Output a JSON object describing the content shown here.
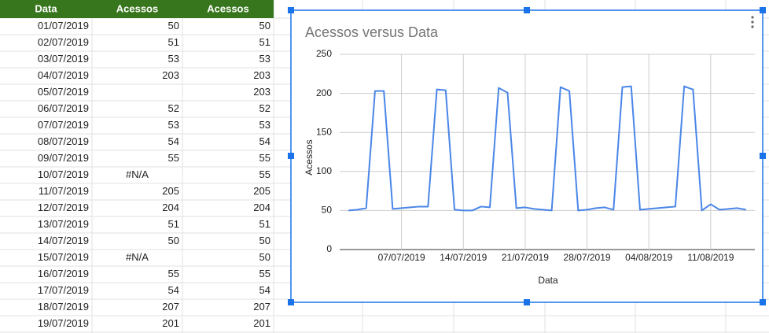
{
  "table": {
    "header": [
      "Data",
      "Acessos",
      "Acessos"
    ],
    "rows": [
      [
        "01/07/2019",
        50,
        50
      ],
      [
        "02/07/2019",
        51,
        51
      ],
      [
        "03/07/2019",
        53,
        53
      ],
      [
        "04/07/2019",
        203,
        203
      ],
      [
        "05/07/2019",
        null,
        203
      ],
      [
        "06/07/2019",
        52,
        52
      ],
      [
        "07/07/2019",
        53,
        53
      ],
      [
        "08/07/2019",
        54,
        54
      ],
      [
        "09/07/2019",
        55,
        55
      ],
      [
        "10/07/2019",
        "#N/A",
        55
      ],
      [
        "11/07/2019",
        205,
        205
      ],
      [
        "12/07/2019",
        204,
        204
      ],
      [
        "13/07/2019",
        51,
        51
      ],
      [
        "14/07/2019",
        50,
        50
      ],
      [
        "15/07/2019",
        "#N/A",
        50
      ],
      [
        "16/07/2019",
        55,
        55
      ],
      [
        "17/07/2019",
        54,
        54
      ],
      [
        "18/07/2019",
        207,
        207
      ],
      [
        "19/07/2019",
        201,
        201
      ]
    ]
  },
  "chart_data": {
    "type": "line",
    "title": "Acessos versus Data",
    "x_label": "Data",
    "y_label": "Acessos",
    "color": "#4a86e8",
    "grid": true,
    "x": [
      "2019-07-01",
      "2019-07-02",
      "2019-07-03",
      "2019-07-04",
      "2019-07-05",
      "2019-07-06",
      "2019-07-07",
      "2019-07-08",
      "2019-07-09",
      "2019-07-10",
      "2019-07-11",
      "2019-07-12",
      "2019-07-13",
      "2019-07-14",
      "2019-07-15",
      "2019-07-16",
      "2019-07-17",
      "2019-07-18",
      "2019-07-19",
      "2019-07-20",
      "2019-07-21",
      "2019-07-22",
      "2019-07-23",
      "2019-07-24",
      "2019-07-25",
      "2019-07-26",
      "2019-07-27",
      "2019-07-28",
      "2019-07-29",
      "2019-07-30",
      "2019-07-31",
      "2019-08-01",
      "2019-08-02",
      "2019-08-03",
      "2019-08-04",
      "2019-08-05",
      "2019-08-06",
      "2019-08-07",
      "2019-08-08",
      "2019-08-09",
      "2019-08-10",
      "2019-08-11",
      "2019-08-12",
      "2019-08-13",
      "2019-08-14",
      "2019-08-15"
    ],
    "values": [
      50,
      51,
      53,
      203,
      203,
      52,
      53,
      54,
      55,
      55,
      205,
      204,
      51,
      50,
      50,
      55,
      54,
      207,
      201,
      53,
      54,
      52,
      51,
      50,
      208,
      203,
      50,
      51,
      53,
      54,
      51,
      208,
      209,
      51,
      52,
      53,
      54,
      55,
      209,
      205,
      50,
      58,
      51,
      52,
      53,
      51
    ],
    "xlim": [
      "2019-06-30",
      "2019-08-16"
    ],
    "xticks": [
      {
        "value": "2019-07-07",
        "label": "07/07/2019"
      },
      {
        "value": "2019-07-14",
        "label": "14/07/2019"
      },
      {
        "value": "2019-07-21",
        "label": "21/07/2019"
      },
      {
        "value": "2019-07-28",
        "label": "28/07/2019"
      },
      {
        "value": "2019-08-04",
        "label": "04/08/2019"
      },
      {
        "value": "2019-08-11",
        "label": "11/08/2019"
      }
    ],
    "ylim": [
      0,
      250
    ],
    "yticks": [
      0,
      50,
      100,
      150,
      200,
      250
    ]
  }
}
